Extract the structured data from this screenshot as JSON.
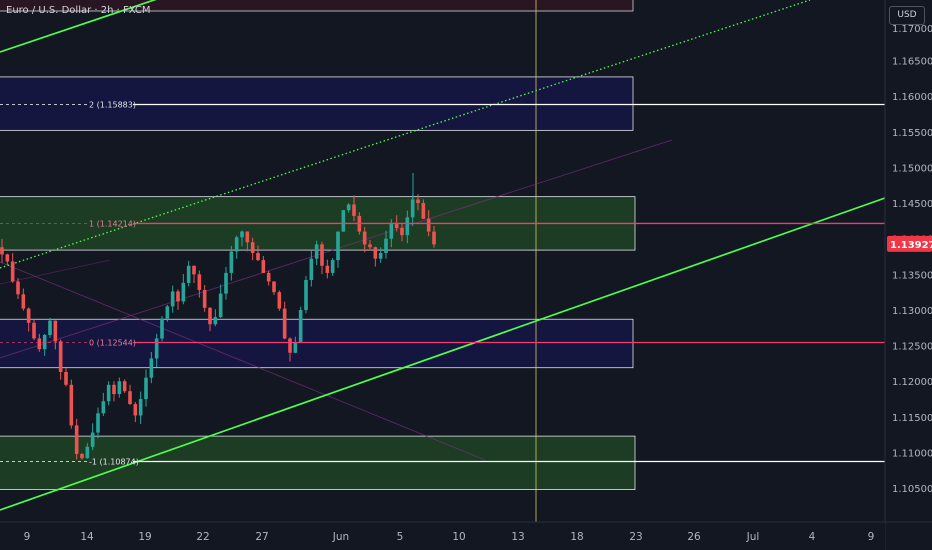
{
  "header": {
    "symbol_title": "Euro / U.S. Dollar · 2h · FXCM",
    "currency_button": "USD"
  },
  "colors": {
    "background": "#131722",
    "up_candle": "#26a69a",
    "down_candle": "#ef5350",
    "channel_line": "#4cff4c",
    "pink_level": "#f23b6e",
    "white_level": "#ffffff",
    "green_zone": "#1c3d24",
    "blue_zone": "#15163f",
    "vertical_marker": "#d8c36a",
    "current_price_tag": "#f23645"
  },
  "chart_data": {
    "type": "candlestick",
    "instrument": "EUR/USD",
    "timeframe": "2h",
    "y_axis_ticks": [
      "1.16500",
      "1.16000",
      "1.15500",
      "1.15000",
      "1.14500",
      "1.14000",
      "1.13500",
      "1.13000",
      "1.12500",
      "1.12000",
      "1.11500",
      "1.11000",
      "1.10500"
    ],
    "ylim": [
      1.102,
      1.172
    ],
    "x_axis_ticks": [
      "9",
      "14",
      "19",
      "22",
      "27",
      "Jun",
      "5",
      "10",
      "13",
      "18",
      "23",
      "26",
      "Jul",
      "4",
      "9"
    ],
    "current_price": "1.13927",
    "levels": [
      {
        "label": "2 (1.15883)",
        "price": 1.15883,
        "color": "white"
      },
      {
        "label": "1 (1.14214)",
        "price": 1.14214,
        "color": "pink"
      },
      {
        "label": "0 (1.12544)",
        "price": 1.12544,
        "color": "pink"
      },
      {
        "label": "-1 (1.10874)",
        "price": 1.10874,
        "color": "white"
      }
    ],
    "zones": [
      {
        "type": "blue",
        "from": 1.1552,
        "to": 1.1627
      },
      {
        "type": "green",
        "from": 1.1384,
        "to": 1.1459
      },
      {
        "type": "blue",
        "from": 1.1219,
        "to": 1.1287
      },
      {
        "type": "green",
        "from": 1.1048,
        "to": 1.1123
      }
    ],
    "price_path": [
      1.1378,
      1.1368,
      1.134,
      1.1322,
      1.1302,
      1.1282,
      1.126,
      1.1245,
      1.1265,
      1.1285,
      1.1256,
      1.1213,
      1.1195,
      1.1138,
      1.1098,
      1.1092,
      1.1108,
      1.1128,
      1.1155,
      1.1172,
      1.1195,
      1.1182,
      1.12,
      1.1186,
      1.1168,
      1.1152,
      1.1175,
      1.1205,
      1.1232,
      1.126,
      1.1288,
      1.1305,
      1.1326,
      1.1312,
      1.1338,
      1.1362,
      1.135,
      1.1328,
      1.1303,
      1.128,
      1.129,
      1.1323,
      1.1352,
      1.1382,
      1.1402,
      1.141,
      1.1395,
      1.138,
      1.137,
      1.1352,
      1.134,
      1.1325,
      1.1302,
      1.126,
      1.124,
      1.1255,
      1.13,
      1.1342,
      1.1372,
      1.1392,
      1.1362,
      1.1352,
      1.137,
      1.141,
      1.144,
      1.1448,
      1.1432,
      1.141,
      1.1392,
      1.1388,
      1.1372,
      1.138,
      1.14,
      1.1422,
      1.1415,
      1.1405,
      1.143,
      1.1455,
      1.145,
      1.1428,
      1.141,
      1.1392
    ]
  }
}
